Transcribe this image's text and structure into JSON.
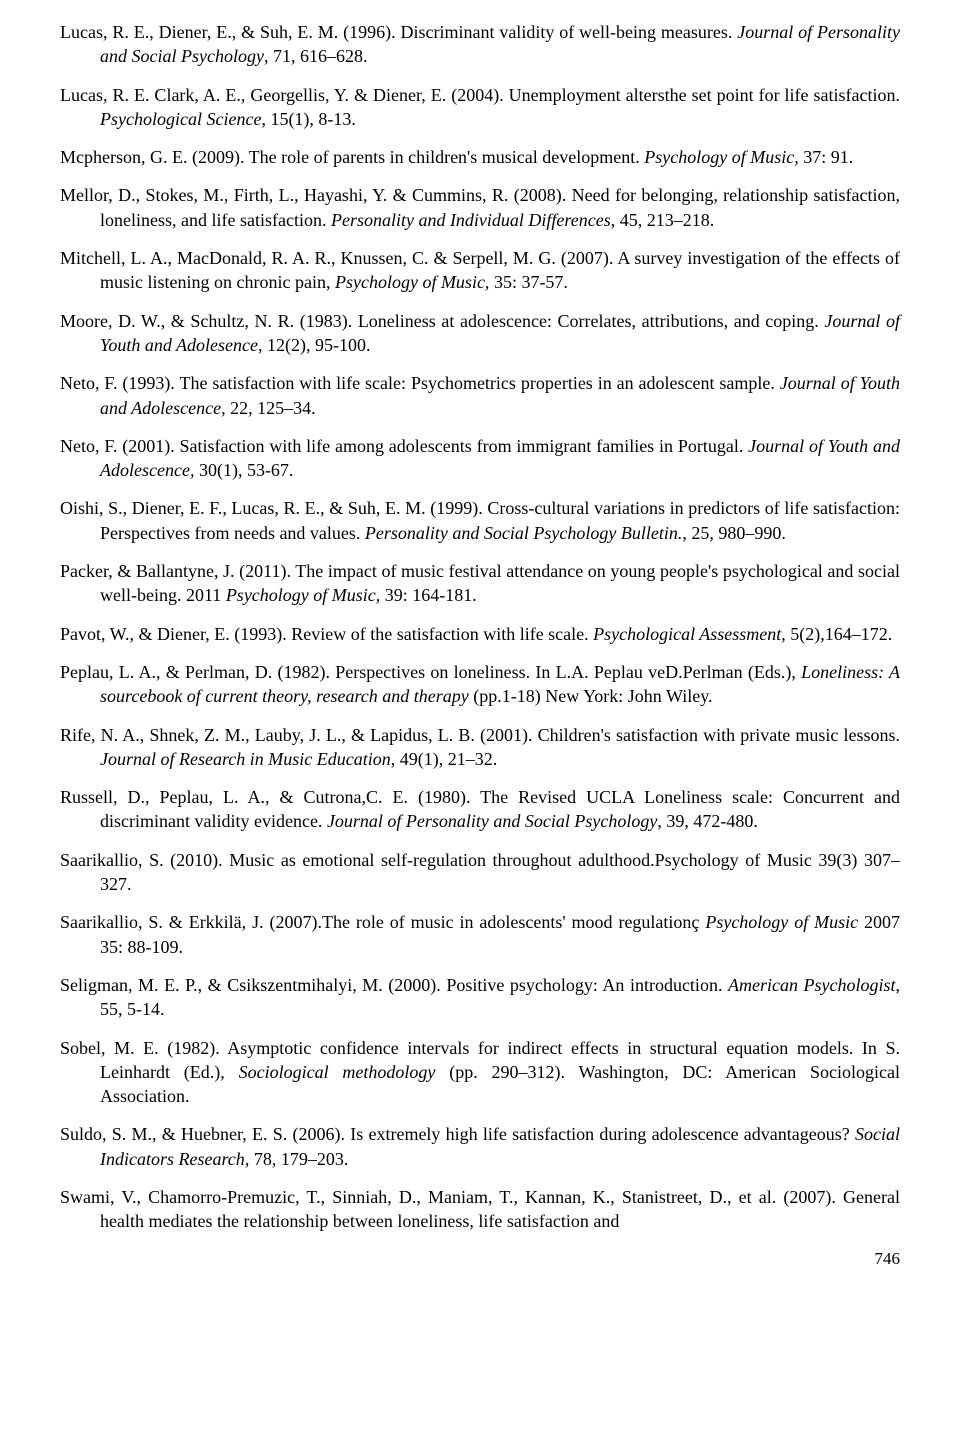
{
  "references": [
    {
      "text": "Lucas, R. E., Diener, E., & Suh, E. M. (1996). Discriminant validity of well-being measures. ",
      "italic": "Journal of Personality and Social Psychology",
      "tail": ", 71, 616–628."
    },
    {
      "text": "Lucas, R. E. Clark, A. E., Georgellis, Y. & Diener, E. (2004). Unemployment altersthe set point for life satisfaction. ",
      "italic": "Psychological Science",
      "tail": ", 15(1), 8-13."
    },
    {
      "text": "Mcpherson, G. E. (2009). The role of parents in children's musical development. ",
      "italic": "Psychology of Music,",
      "tail": " 37: 91."
    },
    {
      "text": "Mellor, D., Stokes, M., Firth, L., Hayashi, Y. & Cummins, R. (2008). Need for belonging, relationship satisfaction, loneliness, and life satisfaction. ",
      "italic": "Personality and Individual Differences",
      "tail": ", 45, 213–218."
    },
    {
      "text": "Mitchell, L. A., MacDonald, R. A. R., Knussen, C. & Serpell, M. G. (2007). A survey investigation of the effects of music listening on chronic pain, ",
      "italic": "Psychology of Music,",
      "tail": " 35: 37-57."
    },
    {
      "text": "Moore, D. W., & Schultz, N. R. (1983). Loneliness at adolescence: Correlates, attributions, and coping. ",
      "italic": "Journal of Youth and Adolesence",
      "tail": ", 12(2), 95-100."
    },
    {
      "text": "Neto, F. (1993). The satisfaction with life scale: Psychometrics properties in an adolescent sample. ",
      "italic": "Journal of Youth and Adolescence",
      "tail": ", 22, 125–34."
    },
    {
      "text": "Neto, F. (2001). Satisfaction with life among adolescents from immigrant families in Portugal. ",
      "italic": "Journal of Youth and Adolescence,",
      "tail": " 30(1), 53-67."
    },
    {
      "text": "Oishi, S., Diener, E. F., Lucas, R. E., & Suh, E. M. (1999). Cross-cultural variations in predictors of life satisfaction: Perspectives from needs and values. ",
      "italic": "Personality and Social Psychology Bulletin.",
      "tail": ", 25, 980–990."
    },
    {
      "text": "Packer, & Ballantyne, J. (2011). The impact of music festival attendance on young people's psychological and social well-being. 2011 ",
      "italic": "Psychology of Music,",
      "tail": " 39: 164-181."
    },
    {
      "text": "Pavot, W., & Diener, E. (1993). Review of the satisfaction with life scale. ",
      "italic": "Psychological Assessment",
      "tail": ", 5(2),164–172."
    },
    {
      "text": "Peplau, L. A., & Perlman, D. (1982). Perspectives on loneliness. In L.A. Peplau veD.Perlman (Eds.), ",
      "italic": "Loneliness: A sourcebook of current theory, research and therapy",
      "tail": " (pp.1-18) New York: John Wiley."
    },
    {
      "text": "Rife, N. A., Shnek, Z. M., Lauby, J. L., & Lapidus, L. B. (2001). Children's satisfaction with private music lessons. ",
      "italic": "Journal of Research in Music Education",
      "tail": ", 49(1), 21–32."
    },
    {
      "text": "Russell, D., Peplau, L. A., & Cutrona,C. E. (1980). The Revised UCLA Loneliness scale: Concurrent and discriminant validity evidence. ",
      "italic": "Journal of Personality and Social Psychology",
      "tail": ", 39, 472-480."
    },
    {
      "text": "Saarikallio, S. (2010). Music as emotional self-regulation throughout adulthood.Psychology of Music 39(3) 307–327.",
      "italic": "",
      "tail": ""
    },
    {
      "text": "Saarikallio, S. & Erkkilä, J. (2007).The role of music in adolescents' mood regulationç ",
      "italic": "Psychology of Music",
      "tail": " 2007 35: 88-109."
    },
    {
      "text": "Seligman, M. E. P., & Csikszentmihalyi, M. (2000). Positive psychology: An introduction. ",
      "italic": "American Psychologist",
      "tail": ", 55, 5-14."
    },
    {
      "text": "Sobel, M. E. (1982). Asymptotic confidence intervals for indirect effects in structural equation models. In S. Leinhardt (Ed.), ",
      "italic": "Sociological methodology",
      "tail": " (pp. 290–312). Washington, DC: American Sociological Association."
    },
    {
      "text": "Suldo, S. M., & Huebner, E. S. (2006). Is extremely high life satisfaction during adolescence advantageous? ",
      "italic": "Social Indicators Research",
      "tail": ", 78, 179–203."
    },
    {
      "text": "Swami, V., Chamorro-Premuzic, T., Sinniah, D., Maniam, T., Kannan, K., Stanistreet, D., et al. (2007). General health mediates the relationship between loneliness, life satisfaction and",
      "italic": "",
      "tail": ""
    }
  ],
  "pageNumber": "746"
}
